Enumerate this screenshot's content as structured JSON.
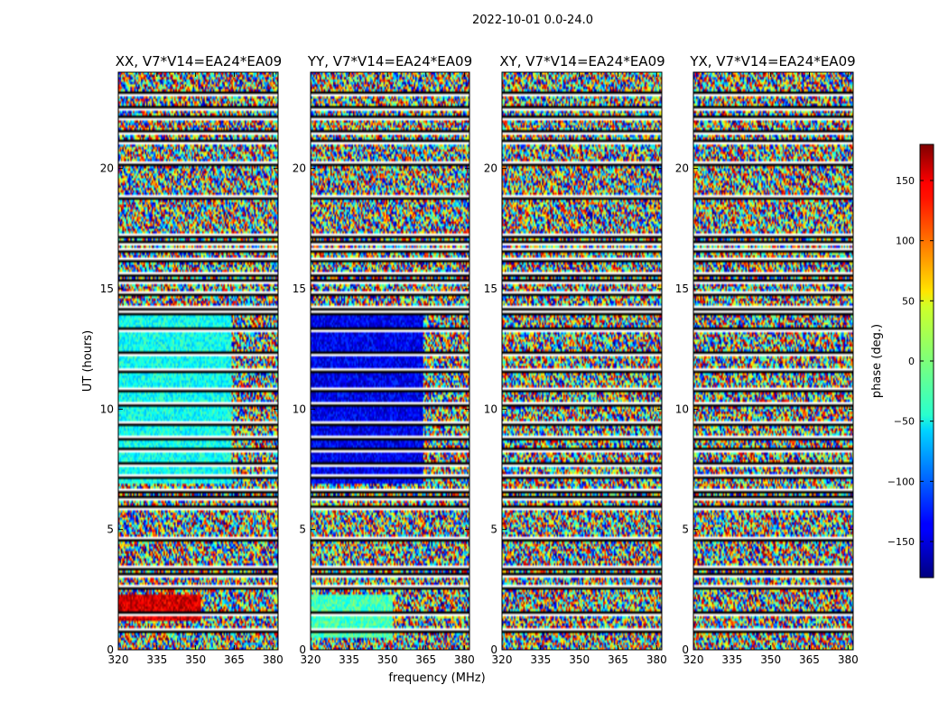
{
  "figure": {
    "suptitle": "2022-10-01 0.0-24.0",
    "xlabel": "frequency (MHz)",
    "ylabel": "UT (hours)"
  },
  "chart_data": [
    {
      "type": "heatmap",
      "title": "XX, V7*V14=EA24*EA09",
      "x_ticks": [
        320,
        335,
        350,
        365,
        380
      ],
      "y_ticks": [
        0,
        5,
        10,
        15,
        20
      ],
      "xlim": [
        320,
        382
      ],
      "ylim": [
        0,
        24
      ],
      "coherent_regions": [
        {
          "t": [
            6.9,
            14.0
          ],
          "f": [
            320,
            364
          ],
          "phase": -40
        },
        {
          "t": [
            1.2,
            2.3
          ],
          "f": [
            320,
            352
          ],
          "phase": 150
        }
      ]
    },
    {
      "type": "heatmap",
      "title": "YY, V7*V14=EA24*EA09",
      "x_ticks": [
        320,
        335,
        350,
        365,
        380
      ],
      "y_ticks": [
        0,
        5,
        10,
        15,
        20
      ],
      "xlim": [
        320,
        382
      ],
      "ylim": [
        0,
        24
      ],
      "coherent_regions": [
        {
          "t": [
            6.9,
            14.0
          ],
          "f": [
            320,
            364
          ],
          "phase": -140
        },
        {
          "t": [
            0.5,
            2.3
          ],
          "f": [
            320,
            352
          ],
          "phase": -20
        }
      ]
    },
    {
      "type": "heatmap",
      "title": "XY, V7*V14=EA24*EA09",
      "x_ticks": [
        320,
        335,
        350,
        365,
        380
      ],
      "y_ticks": [
        0,
        5,
        10,
        15,
        20
      ],
      "xlim": [
        320,
        382
      ],
      "ylim": [
        0,
        24
      ],
      "coherent_regions": []
    },
    {
      "type": "heatmap",
      "title": "YX, V7*V14=EA24*EA09",
      "x_ticks": [
        320,
        335,
        350,
        365,
        380
      ],
      "y_ticks": [
        0,
        5,
        10,
        15,
        20
      ],
      "xlim": [
        320,
        382
      ],
      "ylim": [
        0,
        24
      ],
      "coherent_regions": []
    }
  ],
  "colorbar": {
    "label": "phase (deg.)",
    "ticks": [
      150,
      100,
      50,
      0,
      -50,
      -100,
      -150
    ],
    "range": [
      -180,
      180
    ],
    "colormap": "jet"
  },
  "flagged_rows_hours": [
    0.8,
    1.5,
    2.6,
    3.1,
    3.4,
    4.6,
    5.9,
    6.3,
    6.6,
    7.2,
    7.7,
    8.3,
    8.8,
    9.4,
    10.2,
    10.8,
    11.6,
    12.3,
    13.3,
    14.0,
    14.2,
    14.8,
    15.3,
    15.6,
    16.2,
    16.6,
    16.9,
    17.2,
    18.8,
    20.2,
    21.1,
    21.5,
    22.1,
    22.5,
    23.1
  ]
}
